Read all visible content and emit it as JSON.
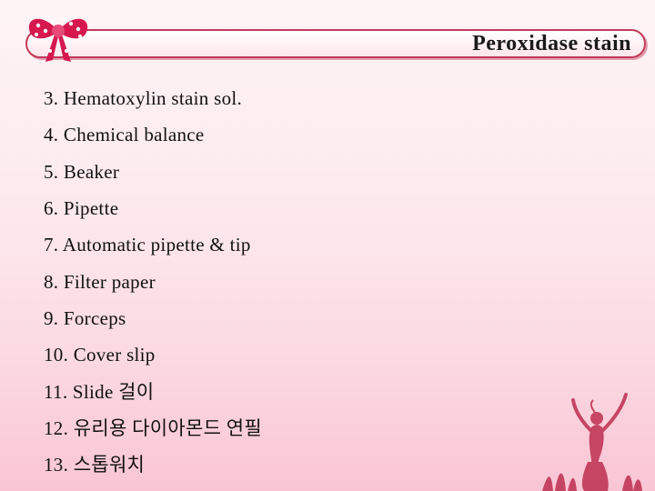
{
  "header": {
    "title": "Peroxidase stain",
    "border_color": "#c23a5a",
    "title_fontsize": 24,
    "title_color": "#1a1a1a"
  },
  "bow": {
    "primary_color": "#d6184e",
    "dot_color": "#ffffff",
    "accent_color": "#e84a78"
  },
  "list": {
    "start_index": 3,
    "fontsize": 21,
    "color": "#111111",
    "items": [
      "Hematoxylin stain sol.",
      "Chemical balance",
      "Beaker",
      "Pipette",
      "Automatic pipette & tip",
      "Filter paper",
      "Forceps",
      "Cover slip",
      "Slide 걸이",
      "유리용 다이아몬드 연필",
      "스톱워치"
    ]
  },
  "background": {
    "gradient_top": "#fef4f6",
    "gradient_mid": "#fce8ed",
    "gradient_low": "#fbd8e1",
    "gradient_bottom": "#f9c5d4"
  },
  "silhouette": {
    "color": "#c23a5a"
  }
}
